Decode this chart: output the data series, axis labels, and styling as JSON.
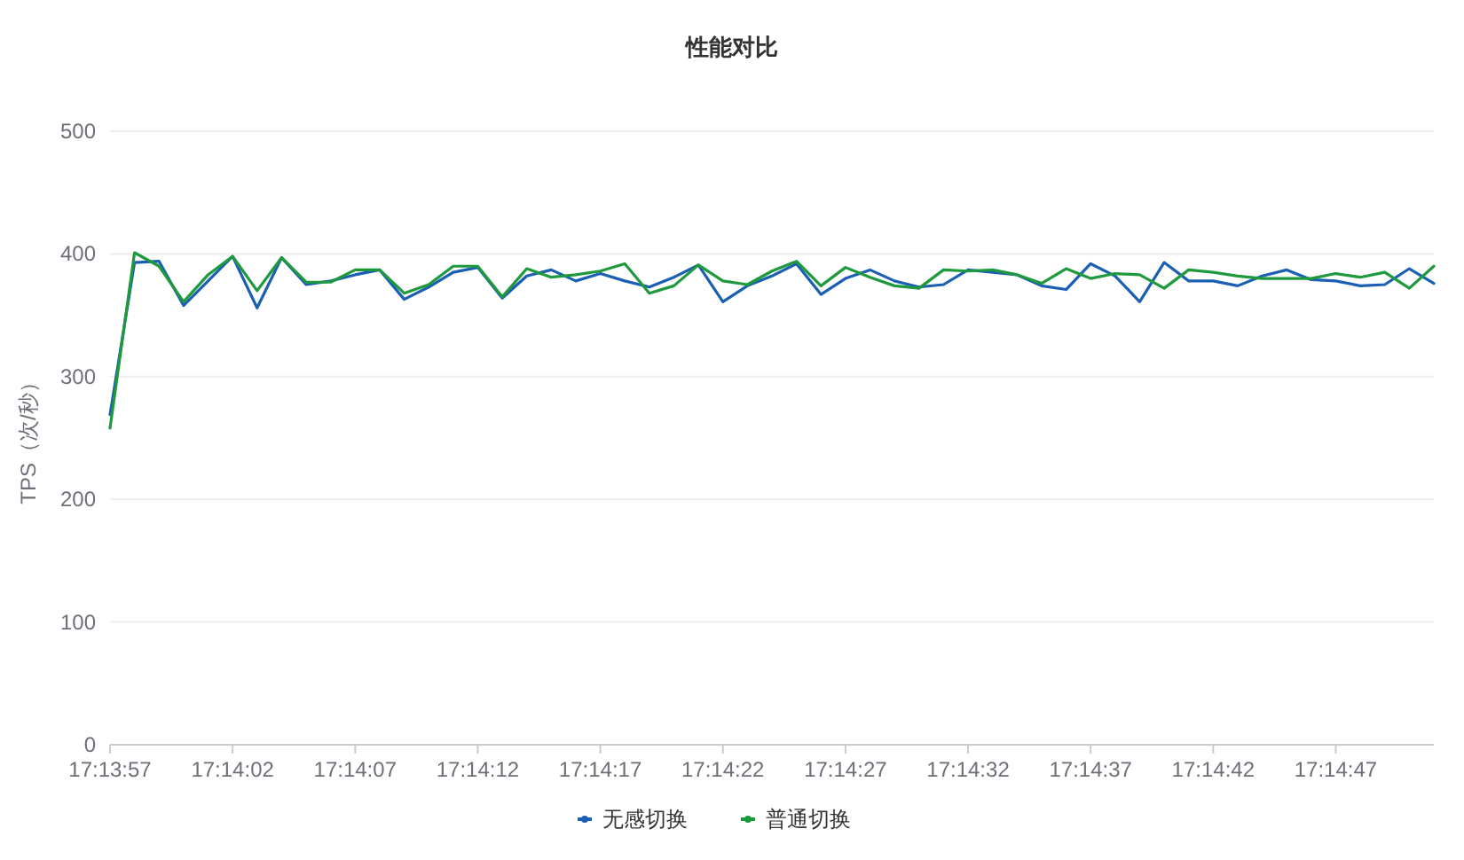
{
  "chart_data": {
    "type": "line",
    "title": "性能对比",
    "ylabel": "TPS（次/秒）",
    "categories": [
      "17:13:57",
      null,
      null,
      null,
      null,
      "17:14:02",
      null,
      null,
      null,
      null,
      "17:14:07",
      null,
      null,
      null,
      null,
      "17:14:12",
      null,
      null,
      null,
      null,
      "17:14:17",
      null,
      null,
      null,
      null,
      "17:14:22",
      null,
      null,
      null,
      null,
      "17:14:27",
      null,
      null,
      null,
      null,
      "17:14:32",
      null,
      null,
      null,
      null,
      "17:14:37",
      null,
      null,
      null,
      null,
      "17:14:42",
      null,
      null,
      null,
      null,
      "17:14:47",
      null,
      null,
      null,
      null
    ],
    "series": [
      {
        "name": "无感切换",
        "color": "#1a5fb4",
        "values": [
          269,
          393,
          394,
          358,
          378,
          398,
          356,
          397,
          375,
          378,
          383,
          387,
          363,
          373,
          385,
          389,
          364,
          382,
          387,
          378,
          384,
          378,
          373,
          381,
          391,
          361,
          374,
          382,
          392,
          367,
          380,
          387,
          378,
          373,
          375,
          387,
          385,
          383,
          374,
          371,
          392,
          382,
          361,
          393,
          378,
          378,
          374,
          382,
          387,
          379,
          378,
          374,
          375,
          388,
          376
        ]
      },
      {
        "name": "普通切换",
        "color": "#1e9a3c",
        "values": [
          258,
          401,
          390,
          361,
          383,
          398,
          370,
          397,
          377,
          377,
          387,
          387,
          368,
          375,
          390,
          390,
          365,
          388,
          381,
          383,
          386,
          392,
          368,
          374,
          391,
          378,
          375,
          386,
          394,
          374,
          389,
          381,
          374,
          372,
          387,
          386,
          387,
          383,
          376,
          388,
          380,
          384,
          383,
          372,
          387,
          385,
          382,
          380,
          380,
          380,
          384,
          381,
          385,
          372,
          390
        ]
      }
    ],
    "ylim": [
      0,
      500
    ],
    "yticks": [
      0,
      100,
      200,
      300,
      400,
      500
    ],
    "grid": "y",
    "legend": "bottom",
    "marker": "none",
    "line_style": "solid"
  }
}
